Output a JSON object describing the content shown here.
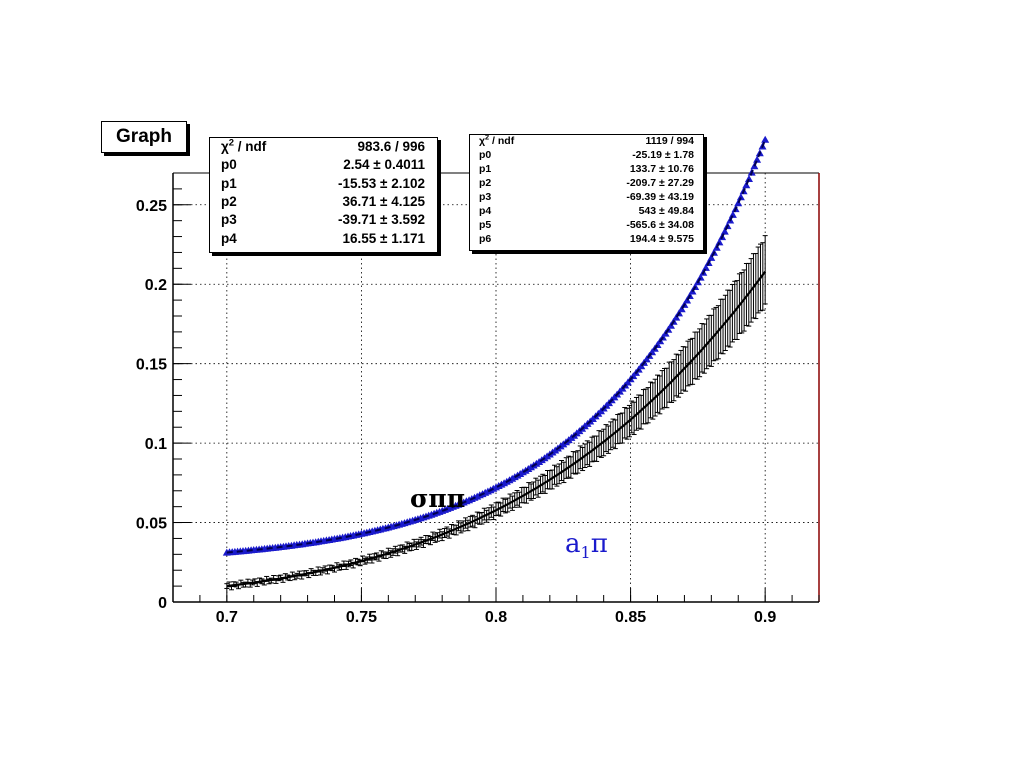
{
  "chart_data": {
    "type": "scatter",
    "title": "Graph",
    "xlabel": "",
    "ylabel": "",
    "xlim": [
      0.68,
      0.92
    ],
    "ylim": [
      0,
      0.27
    ],
    "x_ticks": [
      "0.7",
      "0.75",
      "0.8",
      "0.85",
      "0.9"
    ],
    "y_ticks": [
      "0",
      "0.05",
      "0.1",
      "0.15",
      "0.2",
      "0.25"
    ],
    "grid": true,
    "series": [
      {
        "name": "σππ",
        "color": "#000000",
        "marker": "error-bar",
        "x_range": [
          0.7,
          0.9
        ],
        "fit": {
          "type": "pol4",
          "p": [
            2.54,
            -15.53,
            36.71,
            -39.71,
            16.55
          ]
        }
      },
      {
        "name": "a1π",
        "color": "#1a1acc",
        "marker": "triangle",
        "x_range": [
          0.7,
          0.9
        ],
        "fit": {
          "type": "pol6",
          "p": [
            -25.19,
            133.7,
            -209.7,
            -69.39,
            543,
            -565.6,
            194.4
          ]
        }
      }
    ],
    "annotations": [
      {
        "text": "σππ",
        "color": "#000000"
      },
      {
        "base": "a",
        "sub": "1",
        "suffix": "π",
        "color": "#1a1acc"
      }
    ],
    "stats_boxes": [
      {
        "rows": [
          {
            "label": "χ",
            "label_sup": "2",
            "label_suffix": " / ndf",
            "value": "983.6 / 996"
          },
          {
            "label": "p0",
            "value": "2.54 ± 0.4011"
          },
          {
            "label": "p1",
            "value": "-15.53 ± 2.102"
          },
          {
            "label": "p2",
            "value": "36.71 ± 4.125"
          },
          {
            "label": "p3",
            "value": "-39.71 ± 3.592"
          },
          {
            "label": "p4",
            "value": "16.55 ± 1.171"
          }
        ]
      },
      {
        "rows": [
          {
            "label": "χ",
            "label_sup": "2",
            "label_suffix": " / ndf",
            "value": "1119 / 994"
          },
          {
            "label": "p0",
            "value": "-25.19 ±  1.78"
          },
          {
            "label": "p1",
            "value": "133.7 ± 10.76"
          },
          {
            "label": "p2",
            "value": "-209.7 ± 27.29"
          },
          {
            "label": "p3",
            "value": "-69.39 ± 43.19"
          },
          {
            "label": "p4",
            "value": "543 ± 49.84"
          },
          {
            "label": "p5",
            "value": "-565.6 ± 34.08"
          },
          {
            "label": "p6",
            "value": "194.4 ± 9.575"
          }
        ]
      }
    ]
  }
}
